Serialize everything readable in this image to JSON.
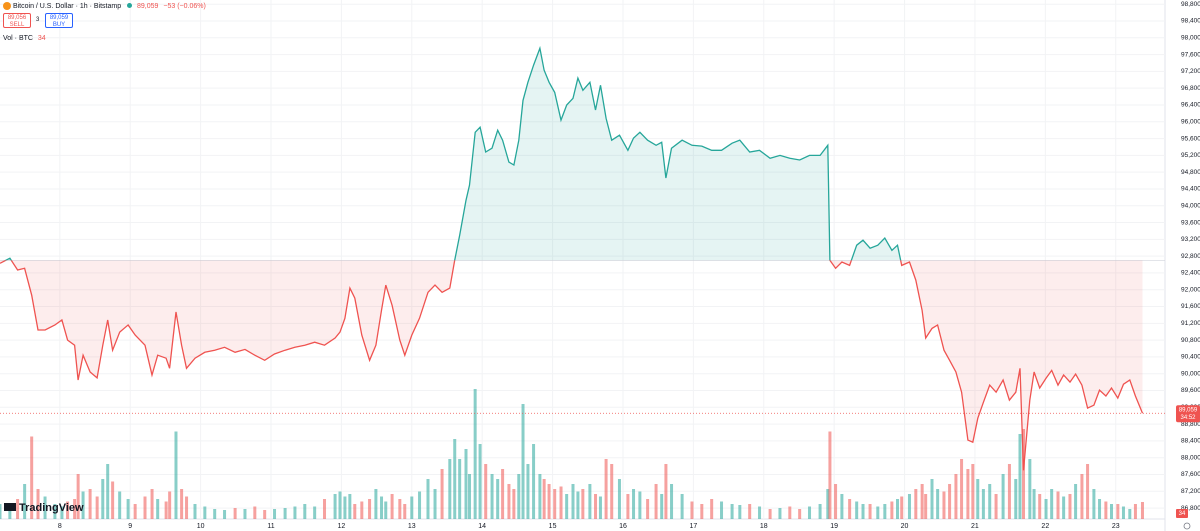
{
  "header": {
    "symbol": "Bitcoin / U.S. Dollar · 1h · Bitstamp",
    "last": "89,059",
    "change": "−53 (−0.06%)",
    "sell_price": "89,056",
    "sell": "SELL",
    "spread": "3",
    "buy_price": "89,059",
    "buy": "BUY",
    "vol_label": "Vol · BTC",
    "vol_value": "34",
    "logo": "TradingView"
  },
  "chart_data": {
    "type": "line",
    "x": [
      7.15,
      7.29,
      7.4,
      7.5,
      7.6,
      7.69,
      7.79,
      7.93,
      8.03,
      8.11,
      8.21,
      8.26,
      8.33,
      8.43,
      8.53,
      8.61,
      8.68,
      8.75,
      8.85,
      8.97,
      9.07,
      9.21,
      9.31,
      9.39,
      9.51,
      9.56,
      9.65,
      9.73,
      9.8,
      9.92,
      10.06,
      10.2,
      10.34,
      10.49,
      10.63,
      10.77,
      10.91,
      11.05,
      11.2,
      11.34,
      11.48,
      11.62,
      11.76,
      11.91,
      11.98,
      12.05,
      12.12,
      12.19,
      12.29,
      12.4,
      12.49,
      12.57,
      12.63,
      12.72,
      12.83,
      12.9,
      13.0,
      13.11,
      13.23,
      13.33,
      13.43,
      13.54,
      13.61,
      13.68,
      13.77,
      13.82,
      13.9,
      13.97,
      14.05,
      14.14,
      14.22,
      14.29,
      14.38,
      14.45,
      14.52,
      14.58,
      14.65,
      14.73,
      14.82,
      14.88,
      14.95,
      15.03,
      15.12,
      15.2,
      15.29,
      15.36,
      15.43,
      15.53,
      15.61,
      15.68,
      15.76,
      15.84,
      15.95,
      16.07,
      16.15,
      16.24,
      16.35,
      16.47,
      16.55,
      16.61,
      16.69,
      16.84,
      16.98,
      17.12,
      17.26,
      17.4,
      17.55,
      17.66,
      17.8,
      17.94,
      18.09,
      18.23,
      18.37,
      18.51,
      18.65,
      18.8,
      18.91,
      18.94,
      19.02,
      19.11,
      19.22,
      19.32,
      19.41,
      19.51,
      19.62,
      19.72,
      19.82,
      19.9,
      19.96,
      20.07,
      20.16,
      20.25,
      20.3,
      20.39,
      20.47,
      20.56,
      20.64,
      20.73,
      20.81,
      20.9,
      20.97,
      21.04,
      21.12,
      21.21,
      21.3,
      21.4,
      21.49,
      21.58,
      21.64,
      21.69,
      21.78,
      21.84,
      21.92,
      22.01,
      22.09,
      22.18,
      22.26,
      22.35,
      22.43,
      22.52,
      22.6,
      22.69,
      22.77,
      22.86,
      22.94,
      23.03,
      23.11,
      23.2,
      23.28,
      23.38
    ],
    "values": [
      92630,
      92750,
      92470,
      92510,
      91870,
      91040,
      91040,
      91160,
      91280,
      90800,
      90680,
      89850,
      90440,
      90040,
      89900,
      90680,
      91280,
      90560,
      90990,
      91160,
      90920,
      90680,
      89970,
      90440,
      90370,
      90130,
      91470,
      90680,
      90130,
      90370,
      90510,
      90560,
      90630,
      90510,
      90580,
      90440,
      90320,
      90470,
      90560,
      90630,
      90680,
      90750,
      90680,
      90850,
      90990,
      91320,
      92040,
      91800,
      90920,
      90320,
      90680,
      91510,
      92110,
      91630,
      90800,
      90440,
      90920,
      91320,
      91940,
      92110,
      91940,
      92040,
      92700,
      93300,
      94130,
      94490,
      95750,
      95870,
      95280,
      95370,
      95800,
      95560,
      95040,
      94970,
      95560,
      96510,
      96940,
      97350,
      97750,
      97230,
      96940,
      96700,
      96040,
      96400,
      96560,
      97040,
      96750,
      96940,
      96280,
      96870,
      96080,
      95560,
      95680,
      95320,
      95610,
      95750,
      95560,
      95440,
      95510,
      94660,
      95370,
      95560,
      95440,
      95420,
      95320,
      95320,
      95490,
      95560,
      95280,
      95320,
      95130,
      95200,
      95130,
      95090,
      95200,
      95200,
      95440,
      92700,
      92510,
      92660,
      92580,
      93060,
      93180,
      92990,
      93060,
      93230,
      92940,
      93060,
      92580,
      92660,
      92230,
      91510,
      90850,
      91080,
      91160,
      90560,
      90320,
      90040,
      89560,
      88420,
      88370,
      88940,
      89320,
      89730,
      89560,
      89850,
      89370,
      89560,
      90130,
      87700,
      89370,
      90040,
      89660,
      89890,
      90080,
      89730,
      89970,
      89800,
      89990,
      89730,
      89180,
      89250,
      89610,
      89470,
      89660,
      89420,
      89750,
      89850,
      89470,
      89059
    ],
    "volume": [
      30,
      25,
      40,
      70,
      165,
      60,
      45,
      30,
      25,
      35,
      40,
      90,
      55,
      60,
      45,
      80,
      110,
      75,
      55,
      40,
      30,
      45,
      60,
      40,
      35,
      55,
      175,
      60,
      45,
      30,
      25,
      20,
      18,
      22,
      20,
      25,
      18,
      20,
      22,
      25,
      30,
      25,
      40,
      50,
      55,
      45,
      50,
      30,
      35,
      40,
      60,
      45,
      35,
      50,
      40,
      30,
      45,
      55,
      80,
      60,
      100,
      120,
      160,
      120,
      140,
      90,
      260,
      150,
      110,
      90,
      80,
      100,
      70,
      60,
      90,
      230,
      110,
      150,
      90,
      80,
      70,
      60,
      65,
      50,
      70,
      55,
      60,
      70,
      50,
      45,
      120,
      110,
      80,
      50,
      60,
      55,
      40,
      70,
      50,
      110,
      70,
      50,
      35,
      30,
      40,
      35,
      30,
      28,
      30,
      25,
      20,
      22,
      25,
      20,
      25,
      30,
      60,
      175,
      70,
      50,
      40,
      35,
      30,
      30,
      25,
      30,
      35,
      40,
      45,
      50,
      60,
      70,
      50,
      80,
      60,
      55,
      70,
      90,
      120,
      100,
      110,
      80,
      60,
      70,
      50,
      90,
      110,
      80,
      170,
      180,
      120,
      60,
      50,
      40,
      60,
      55,
      45,
      50,
      70,
      90,
      110,
      60,
      40,
      35,
      30,
      30,
      25,
      20,
      30,
      34
    ],
    "baseline": 92700,
    "up_color": "#26a69a",
    "down_color": "#ef5350",
    "last_price_label": "89,059",
    "countdown": "34:52",
    "xlim": [
      7.15,
      23.7
    ],
    "xticks": [
      8,
      9,
      10,
      11,
      12,
      13,
      14,
      15,
      16,
      17,
      18,
      19,
      20,
      21,
      22,
      23
    ],
    "ylim": [
      86540,
      98900
    ],
    "yticks": [
      {
        "value": 86800,
        "label": "86,800"
      },
      {
        "value": 87200,
        "label": "87,200"
      },
      {
        "value": 87600,
        "label": "87,600"
      },
      {
        "value": 88000,
        "label": "88,000"
      },
      {
        "value": 88400,
        "label": "88,400"
      },
      {
        "value": 88800,
        "label": "88,800"
      },
      {
        "value": 89200,
        "label": "89,200"
      },
      {
        "value": 89600,
        "label": "89,600"
      },
      {
        "value": 90000,
        "label": "90,000"
      },
      {
        "value": 90400,
        "label": "90,400"
      },
      {
        "value": 90800,
        "label": "90,800"
      },
      {
        "value": 91200,
        "label": "91,200"
      },
      {
        "value": 91600,
        "label": "91,600"
      },
      {
        "value": 92000,
        "label": "92,000"
      },
      {
        "value": 92400,
        "label": "92,400"
      },
      {
        "value": 92800,
        "label": "92,800"
      },
      {
        "value": 93200,
        "label": "93,200"
      },
      {
        "value": 93600,
        "label": "93,600"
      },
      {
        "value": 94000,
        "label": "94,000"
      },
      {
        "value": 94400,
        "label": "94,400"
      },
      {
        "value": 94800,
        "label": "94,800"
      },
      {
        "value": 95200,
        "label": "95,200"
      },
      {
        "value": 95600,
        "label": "95,600"
      },
      {
        "value": 96000,
        "label": "96,000"
      },
      {
        "value": 96400,
        "label": "96,400"
      },
      {
        "value": 96800,
        "label": "96,800"
      },
      {
        "value": 97200,
        "label": "97,200"
      },
      {
        "value": 97600,
        "label": "97,600"
      },
      {
        "value": 98000,
        "label": "98,000"
      },
      {
        "value": 98400,
        "label": "98,400"
      },
      {
        "value": 98800,
        "label": "98,800"
      }
    ],
    "grid": true
  }
}
